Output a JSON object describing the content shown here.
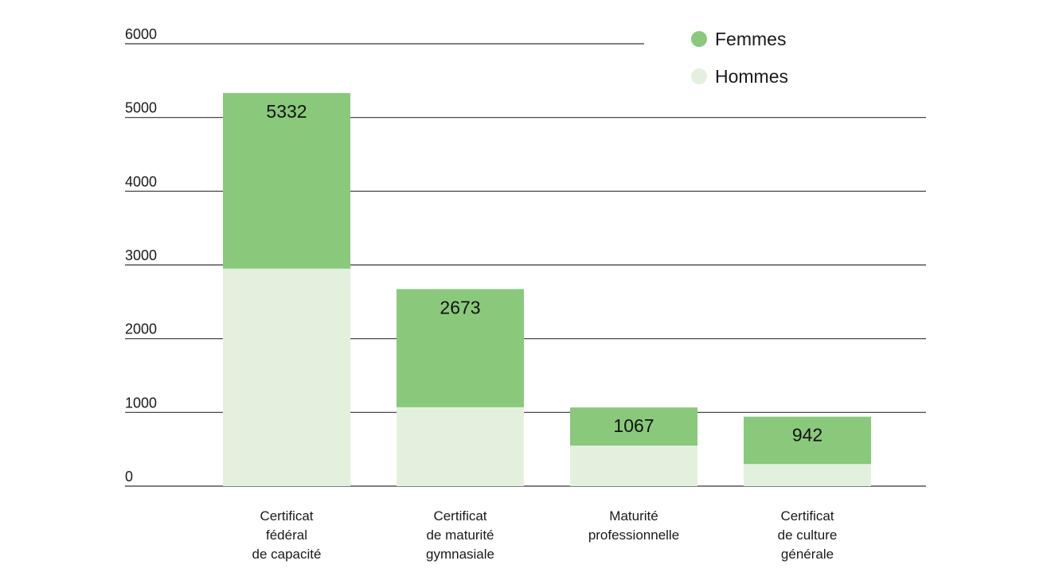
{
  "chart_data": {
    "type": "bar",
    "stacked": true,
    "categories": [
      [
        "Certificat",
        "fédéral",
        "de capacité"
      ],
      [
        "Certificat",
        "de maturité",
        "gymnasiale"
      ],
      [
        "Maturité",
        "professionnelle"
      ],
      [
        "Certificat",
        "de culture",
        "générale"
      ]
    ],
    "series": [
      {
        "name": "Hommes",
        "color": "#e3f0de",
        "values": [
          2950,
          1070,
          550,
          300
        ]
      },
      {
        "name": "Femmes",
        "color": "#8ac97b",
        "values": [
          2382,
          1603,
          517,
          642
        ]
      }
    ],
    "totals": [
      5332,
      2673,
      1067,
      942
    ],
    "total_labels": [
      "5332",
      "2673",
      "1067",
      "942"
    ],
    "yticks": [
      {
        "value": 0,
        "label": "0"
      },
      {
        "value": 1000,
        "label": "1000"
      },
      {
        "value": 2000,
        "label": "2000"
      },
      {
        "value": 3000,
        "label": "3000"
      },
      {
        "value": 4000,
        "label": "4000"
      },
      {
        "value": 5000,
        "label": "5000"
      },
      {
        "value": 6000,
        "label": "6000"
      }
    ],
    "ylim": [
      0,
      6000
    ],
    "grid": true,
    "legend_position": "top-right",
    "legend": [
      {
        "name": "Femmes",
        "color": "#8ac97b"
      },
      {
        "name": "Hommes",
        "color": "#e3f0de"
      }
    ],
    "title": "",
    "xlabel": "",
    "ylabel": ""
  }
}
